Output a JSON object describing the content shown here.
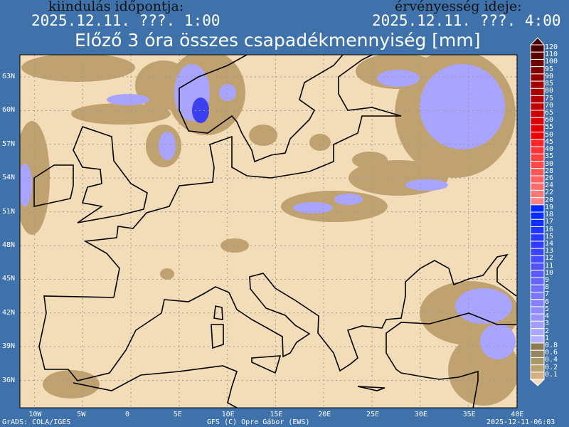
{
  "header": {
    "init_label": "kiindulás időpontja:",
    "init_value": "2025.12.11. ???. 1:00",
    "valid_label": "érvényesség ideje:",
    "valid_value": "2025.12.11. ???. 4:00",
    "title": "Előző 3 óra összes csapadékmennyiség [mm]"
  },
  "map": {
    "background_color": "#f3dcb8",
    "coast_color": "#000000",
    "light_precip_color": "#c0a270",
    "precip_color": "#a8a4ff",
    "heavy_precip_color": "#3a40f0",
    "lat_labels": [
      "63N",
      "60N",
      "57N",
      "54N",
      "51N",
      "48N",
      "45N",
      "42N",
      "39N",
      "36N"
    ],
    "lat_values": [
      63,
      60,
      57,
      54,
      51,
      48,
      45,
      42,
      39,
      36
    ],
    "lon_labels": [
      "10W",
      "5W",
      "0",
      "5E",
      "10E",
      "15E",
      "20E",
      "25E",
      "30E",
      "35E",
      "40E"
    ],
    "lon_values": [
      -10,
      -5,
      0,
      5,
      10,
      15,
      20,
      25,
      30,
      35,
      40
    ]
  },
  "colorbar": {
    "labels": [
      "120",
      "110",
      "100",
      "95",
      "90",
      "85",
      "80",
      "75",
      "70",
      "65",
      "60",
      "55",
      "50",
      "45",
      "40",
      "35",
      "30",
      "28",
      "26",
      "24",
      "22",
      "20",
      "19",
      "18",
      "17",
      "16",
      "15",
      "14",
      "13",
      "12",
      "11",
      "10",
      "9",
      "8",
      "7",
      "6",
      "5",
      "4",
      "3",
      "2",
      "1",
      "0.8",
      "0.6",
      "0.4",
      "0.2",
      "0.1"
    ],
    "colors": [
      "#4a0000",
      "#5c0000",
      "#700000",
      "#800000",
      "#900000",
      "#a00000",
      "#aa0000",
      "#b40000",
      "#c00000",
      "#cc0000",
      "#d80000",
      "#e40000",
      "#f00000",
      "#ff2828",
      "#ff3434",
      "#ff4040",
      "#ff4a4a",
      "#ff5656",
      "#ff6060",
      "#ff6c6c",
      "#ff7878",
      "#ff8484",
      "#0028ff",
      "#0a2cff",
      "#1430ff",
      "#1e34ff",
      "#2838ff",
      "#323cff",
      "#3c44ff",
      "#464cff",
      "#5054ff",
      "#5a5cff",
      "#6664ff",
      "#7070ff",
      "#7a78ff",
      "#8480ff",
      "#8e8aff",
      "#9894ff",
      "#a29eff",
      "#aca8ff",
      "#b4b0ff",
      "#8c7a55",
      "#968660",
      "#a89868",
      "#bca070",
      "#d4b080"
    ],
    "top_arrow_color": "#4a0000",
    "bottom_arrow_color": "#f5dcc0"
  },
  "footer": {
    "left": "GrADS: COLA/IGES",
    "center": "GFS (C) Opre Gábor (EWS)",
    "right": "2025-12-11-06:03"
  }
}
